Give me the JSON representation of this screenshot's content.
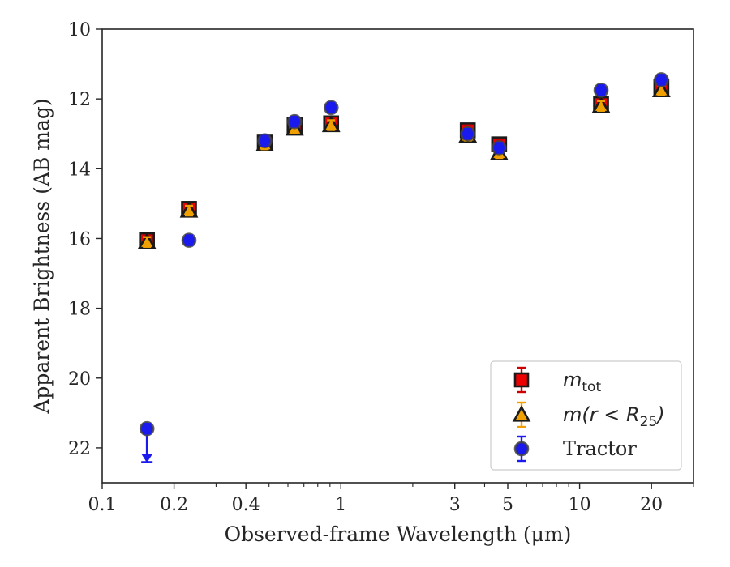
{
  "chart_data": {
    "type": "scatter",
    "xlabel": "Observed-frame Wavelength (μm)",
    "ylabel": "Apparent Brightness (AB mag)",
    "x_scale": "log",
    "xlim": [
      0.1,
      30
    ],
    "ylim": [
      23,
      10
    ],
    "y_inverted": true,
    "x_ticks": [
      0.1,
      0.2,
      0.4,
      1,
      3,
      5,
      10,
      20
    ],
    "x_tick_labels": [
      "0.1",
      "0.2",
      "0.4",
      "1",
      "3",
      "5",
      "10",
      "20"
    ],
    "y_ticks": [
      10,
      12,
      14,
      16,
      18,
      20,
      22
    ],
    "y_tick_labels": [
      "10",
      "12",
      "14",
      "16",
      "18",
      "20",
      "22"
    ],
    "grid": false,
    "legend_position": "lower-right",
    "series": [
      {
        "name": "m_tot",
        "legend_label": {
          "main": "m",
          "sub": "tot"
        },
        "marker": "square",
        "face_color": "#ee0000",
        "edge_color": "#1a1a1a",
        "err_color": "#cc0000",
        "points": [
          {
            "x": 0.154,
            "y": 16.05,
            "err": 0.1
          },
          {
            "x": 0.231,
            "y": 15.15,
            "err": 0.1
          },
          {
            "x": 0.48,
            "y": 13.25,
            "err": 0.1
          },
          {
            "x": 0.64,
            "y": 12.75,
            "err": 0.1
          },
          {
            "x": 0.91,
            "y": 12.7,
            "err": 0.1
          },
          {
            "x": 3.4,
            "y": 12.9,
            "err": 0.1
          },
          {
            "x": 4.6,
            "y": 13.3,
            "err": 0.1
          },
          {
            "x": 12.3,
            "y": 12.15,
            "err": 0.1
          },
          {
            "x": 22.0,
            "y": 11.65,
            "err": 0.1
          }
        ]
      },
      {
        "name": "m(r<R25)",
        "legend_label": {
          "main": "m(r < R",
          "sub": "25",
          "tail": ")"
        },
        "marker": "triangle",
        "face_color": "#f0a000",
        "edge_color": "#1a1a1a",
        "err_color": "#f0a000",
        "points": [
          {
            "x": 0.154,
            "y": 16.1,
            "err": 0.08
          },
          {
            "x": 0.231,
            "y": 15.2,
            "err": 0.08
          },
          {
            "x": 0.48,
            "y": 13.3,
            "err": 0.08
          },
          {
            "x": 0.64,
            "y": 12.85,
            "err": 0.08
          },
          {
            "x": 0.91,
            "y": 12.75,
            "err": 0.08
          },
          {
            "x": 3.4,
            "y": 13.05,
            "err": 0.08
          },
          {
            "x": 4.6,
            "y": 13.55,
            "err": 0.08
          },
          {
            "x": 12.3,
            "y": 12.2,
            "err": 0.08
          },
          {
            "x": 22.0,
            "y": 11.75,
            "err": 0.08
          }
        ]
      },
      {
        "name": "Tractor",
        "legend_label": {
          "main": "Tractor"
        },
        "marker": "circle",
        "face_color": "#1a1aee",
        "edge_color": "#444444",
        "err_color": "#1a1aee",
        "points": [
          {
            "x": 0.154,
            "y": 21.45,
            "err": 0,
            "upper_limit": true
          },
          {
            "x": 0.231,
            "y": 16.05,
            "err": 0.05
          },
          {
            "x": 0.48,
            "y": 13.2,
            "err": 0.05
          },
          {
            "x": 0.64,
            "y": 12.65,
            "err": 0.05
          },
          {
            "x": 0.91,
            "y": 12.25,
            "err": 0.05
          },
          {
            "x": 3.4,
            "y": 13.0,
            "err": 0.05
          },
          {
            "x": 4.6,
            "y": 13.4,
            "err": 0.05
          },
          {
            "x": 12.3,
            "y": 11.75,
            "err": 0.05
          },
          {
            "x": 22.0,
            "y": 11.45,
            "err": 0.05
          }
        ]
      }
    ]
  }
}
